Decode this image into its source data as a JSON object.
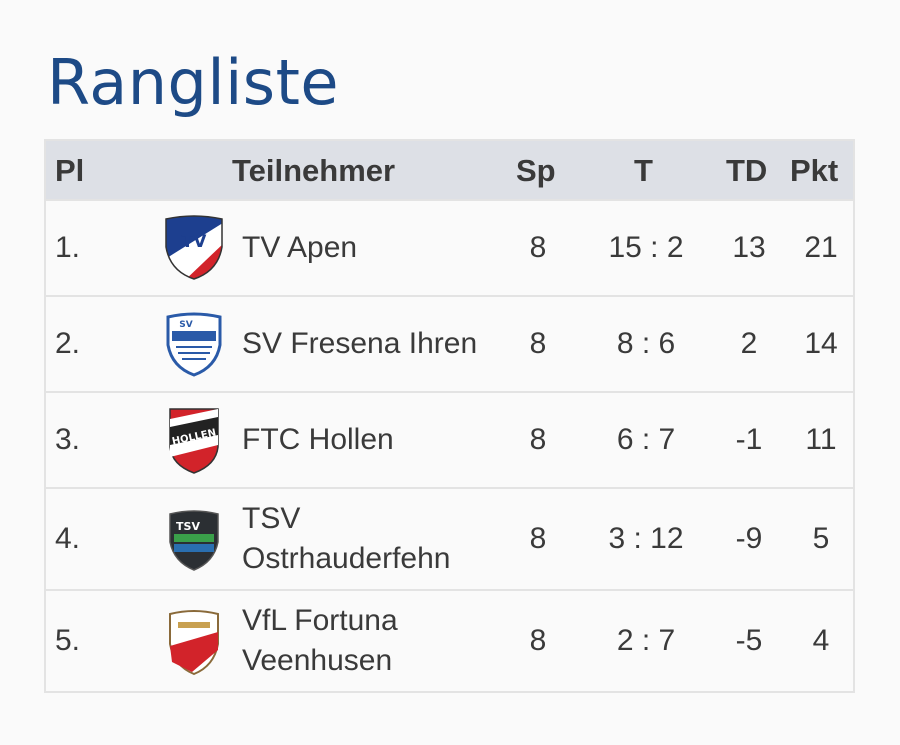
{
  "page": {
    "title": "Rangliste"
  },
  "table": {
    "headers": {
      "pl": "Pl",
      "teilnehmer": "Teilnehmer",
      "sp": "Sp",
      "t": "T",
      "td": "TD",
      "pkt": "Pkt"
    },
    "rows": [
      {
        "pl": "1.",
        "team": "TV Apen",
        "sp": "8",
        "t": "15 : 2",
        "td": "13",
        "pkt": "21",
        "logo": "tv-apen-crest"
      },
      {
        "pl": "2.",
        "team": "SV Fresena Ihren",
        "sp": "8",
        "t": "8 : 6",
        "td": "2",
        "pkt": "14",
        "logo": "sv-fresena-crest"
      },
      {
        "pl": "3.",
        "team": "FTC Hollen",
        "sp": "8",
        "t": "6 : 7",
        "td": "-1",
        "pkt": "11",
        "logo": "ftc-hollen-crest"
      },
      {
        "pl": "4.",
        "team": "TSV Ostrhauderfehn",
        "sp": "8",
        "t": "3 : 12",
        "td": "-9",
        "pkt": "5",
        "logo": "tsv-ostrhauderfehn-crest"
      },
      {
        "pl": "5.",
        "team": "VfL Fortuna Veenhusen",
        "sp": "8",
        "t": "2 : 7",
        "td": "-5",
        "pkt": "4",
        "logo": "vfl-fortuna-crest"
      }
    ]
  },
  "colors": {
    "title": "#1d4a86",
    "header_bg": "#dde0e6",
    "text": "#3a3a3a"
  }
}
